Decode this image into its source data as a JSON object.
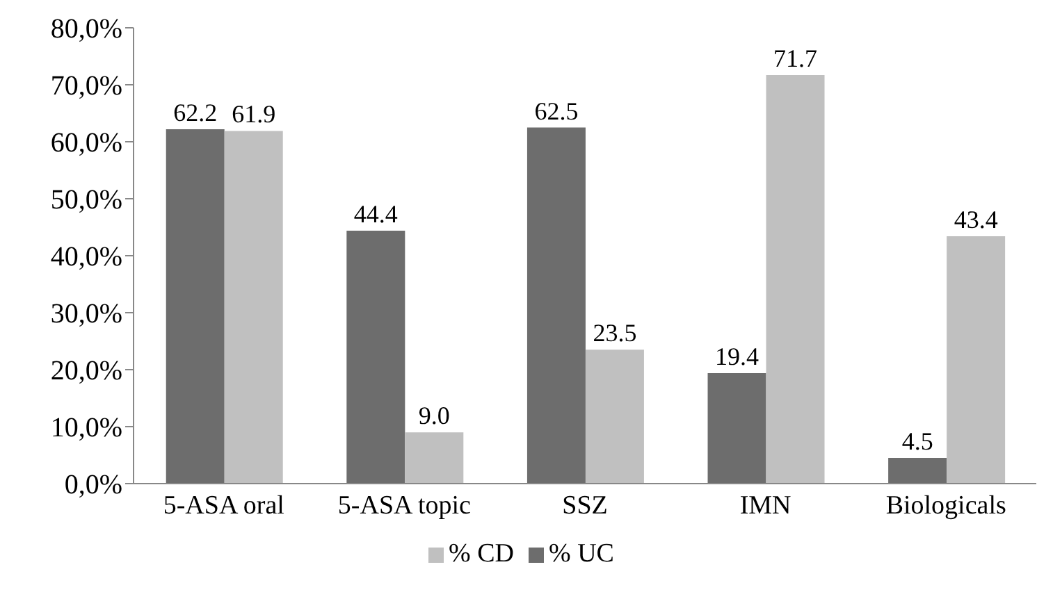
{
  "chart_data": {
    "type": "bar",
    "categories": [
      "5-ASA oral",
      "5-ASA topic",
      "SSZ",
      "IMN",
      "Biologicals"
    ],
    "series": [
      {
        "name": "% UC",
        "color": "#6d6d6d",
        "values": [
          62.2,
          44.4,
          62.5,
          19.4,
          4.5
        ],
        "value_labels": [
          "62.2",
          "44.4",
          "62.5",
          "19.4",
          "4.5"
        ]
      },
      {
        "name": "% CD",
        "color": "#c0c0c0",
        "values": [
          61.9,
          9.0,
          23.5,
          71.7,
          43.4
        ],
        "value_labels": [
          "61.9",
          "9.0",
          "23.5",
          "71.7",
          "43.4"
        ]
      }
    ],
    "ylim": [
      0,
      80
    ],
    "yticks": [
      {
        "value": 0,
        "label": "0,0%"
      },
      {
        "value": 10,
        "label": "10,0%"
      },
      {
        "value": 20,
        "label": "20,0%"
      },
      {
        "value": 30,
        "label": "30,0%"
      },
      {
        "value": 40,
        "label": "40,0%"
      },
      {
        "value": 50,
        "label": "50,0%"
      },
      {
        "value": 60,
        "label": "60,0%"
      },
      {
        "value": 70,
        "label": "70,0%"
      },
      {
        "value": 80,
        "label": "80,0%"
      }
    ],
    "grid": false,
    "legend": "bottom"
  }
}
